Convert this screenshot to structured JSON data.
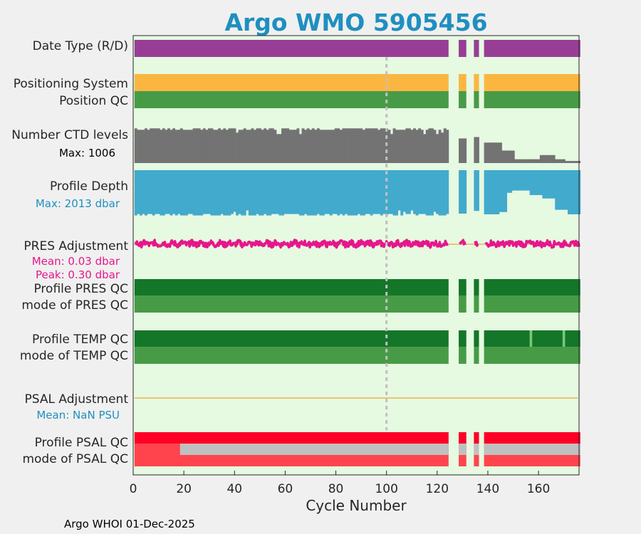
{
  "chart_data": {
    "type": "qc-timeline",
    "title": "Argo WMO 5905456",
    "xlabel": "Cycle Number",
    "xlim": [
      0,
      176
    ],
    "xticks": [
      0,
      20,
      40,
      60,
      80,
      100,
      120,
      140,
      160
    ],
    "marker_cycle": 100,
    "missing_cycles": [
      125,
      126,
      127,
      128,
      132,
      133,
      134,
      137,
      138
    ],
    "footer": "Argo WHOI 01-Dec-2025",
    "colors": {
      "plot_bg": "#e6f9e1",
      "title": "#1f8fc0",
      "date_type": "#983d96",
      "positioning": "#fbb642",
      "qc_good": "#479b46",
      "qc_dark": "#147629",
      "ctd": "#737373",
      "depth": "#42aacd",
      "pres_adj": "#e6168c",
      "psal_red": "#ff0026",
      "psal_light_red": "#ff444d",
      "psal_grey": "#c0c0c0",
      "zero_line": "#efb34a",
      "vline": "#c0c0c0"
    },
    "rows": {
      "date_type": "Date Type (R/D)",
      "positioning": "Positioning System",
      "position_qc": "Position QC",
      "ctd_levels": "Number CTD levels",
      "ctd_max": "Max: 1006",
      "profile_depth": "Profile Depth",
      "depth_max": "Max: 2013 dbar",
      "pres_adj": "PRES Adjustment",
      "pres_mean": "Mean: 0.03 dbar",
      "pres_peak": "Peak: 0.30 dbar",
      "pres_profile_qc": "Profile PRES QC",
      "pres_mode_qc": "mode of PRES QC",
      "temp_profile_qc": "Profile TEMP QC",
      "temp_mode_qc": "mode of TEMP QC",
      "psal_adj": "PSAL Adjustment",
      "psal_mean": "Mean:  NaN PSU",
      "psal_profile_qc": "Profile PSAL QC",
      "psal_mode_qc": "mode of PSAL QC"
    },
    "ctd_levels_series": {
      "ymax": 1006,
      "segments": [
        {
          "from": 1,
          "to": 124,
          "value": 1000
        },
        {
          "from": 129,
          "to": 131,
          "value": 710
        },
        {
          "from": 135,
          "to": 136,
          "value": 750
        },
        {
          "from": 139,
          "to": 145,
          "value": 590
        },
        {
          "from": 146,
          "to": 150,
          "value": 360
        },
        {
          "from": 151,
          "to": 160,
          "value": 110
        },
        {
          "from": 161,
          "to": 166,
          "value": 230
        },
        {
          "from": 167,
          "to": 170,
          "value": 110
        },
        {
          "from": 171,
          "to": 176,
          "value": 60
        }
      ]
    },
    "profile_depth_series": {
      "ymax": 2013,
      "segments": [
        {
          "from": 1,
          "to": 124,
          "value": 2000
        },
        {
          "from": 129,
          "to": 131,
          "value": 1920
        },
        {
          "from": 135,
          "to": 136,
          "value": 1800
        },
        {
          "from": 139,
          "to": 144,
          "value": 1950
        },
        {
          "from": 145,
          "to": 147,
          "value": 1850
        },
        {
          "from": 148,
          "to": 149,
          "value": 1000
        },
        {
          "from": 150,
          "to": 156,
          "value": 900
        },
        {
          "from": 157,
          "to": 161,
          "value": 1100
        },
        {
          "from": 162,
          "to": 166,
          "value": 1250
        },
        {
          "from": 167,
          "to": 171,
          "value": 1750
        },
        {
          "from": 172,
          "to": 176,
          "value": 1950
        }
      ]
    },
    "pres_adjustment_series": {
      "ylim": [
        -0.3,
        0.3
      ],
      "mean": 0.03,
      "peak": 0.3
    },
    "temp_profile_qc_flags": [
      {
        "cycle": 157,
        "flag": "good"
      },
      {
        "cycle": 170,
        "flag": "good"
      }
    ],
    "psal_grey_from_cycle": 19
  }
}
